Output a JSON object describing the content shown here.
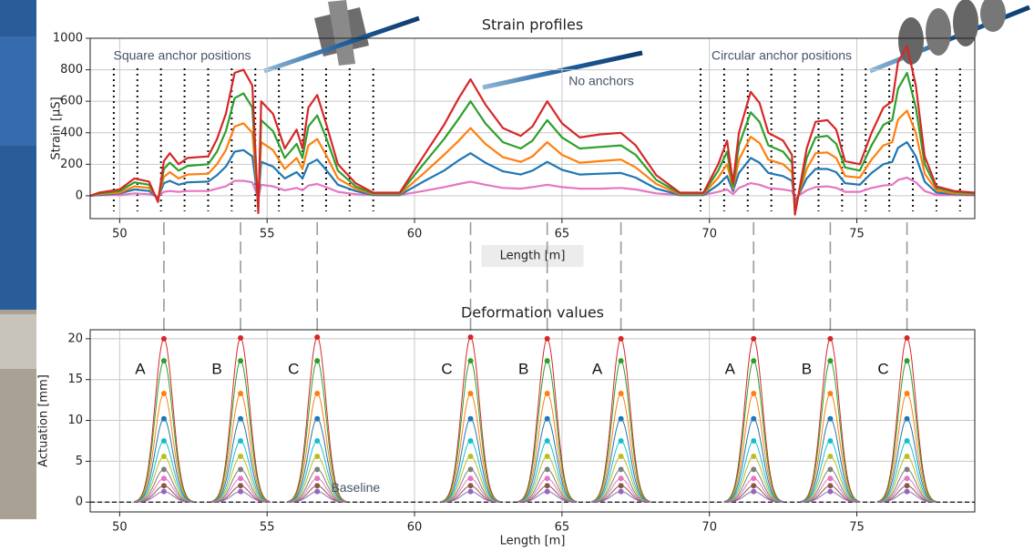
{
  "chart_data": [
    {
      "type": "line",
      "title": "Strain profiles",
      "x_label": "Length [m]",
      "y_label": "Strain [µS]",
      "xlim": [
        49,
        79
      ],
      "xticks": [
        50,
        55,
        60,
        65,
        70,
        75
      ],
      "ylim": [
        -145,
        1000
      ],
      "yticks": [
        0,
        200,
        400,
        600,
        800,
        1000
      ],
      "grid": true,
      "annotations": [
        "Square anchor positions",
        "No anchors",
        "Circular anchor positions"
      ],
      "anchor_positions": [
        49.8,
        50.6,
        51.4,
        52.2,
        53.0,
        53.8,
        54.6,
        55.4,
        56.2,
        57.0,
        57.8,
        58.6,
        69.7,
        70.5,
        71.3,
        72.1,
        72.9,
        73.7,
        74.5,
        75.3,
        76.1,
        76.9,
        77.7,
        78.5
      ],
      "x": [
        49.0,
        49.3,
        50.0,
        50.5,
        51.0,
        51.3,
        51.5,
        51.7,
        52.0,
        52.3,
        53.0,
        53.3,
        53.6,
        53.9,
        54.2,
        54.5,
        54.7,
        54.8,
        55.2,
        55.6,
        56.0,
        56.2,
        56.4,
        56.7,
        57.0,
        57.4,
        58.0,
        58.6,
        59.5,
        60.3,
        61.0,
        61.5,
        61.9,
        62.4,
        63.0,
        63.6,
        64.0,
        64.5,
        65.0,
        65.6,
        66.3,
        67.0,
        67.5,
        68.2,
        69.0,
        69.8,
        70.3,
        70.6,
        70.8,
        71.0,
        71.4,
        71.7,
        72.0,
        72.5,
        72.8,
        72.9,
        73.3,
        73.6,
        74.0,
        74.3,
        74.6,
        75.1,
        75.5,
        75.9,
        76.2,
        76.4,
        76.7,
        77.0,
        77.3,
        77.7,
        78.3,
        79.0
      ],
      "series": [
        {
          "color": "#d62728",
          "values": [
            0,
            20,
            40,
            110,
            90,
            -40,
            220,
            270,
            200,
            240,
            250,
            360,
            520,
            780,
            800,
            700,
            -110,
            600,
            520,
            300,
            420,
            300,
            560,
            640,
            460,
            200,
            80,
            20,
            20,
            250,
            450,
            620,
            740,
            580,
            430,
            380,
            440,
            600,
            460,
            370,
            390,
            400,
            320,
            130,
            20,
            20,
            200,
            350,
            80,
            400,
            660,
            590,
            400,
            350,
            260,
            -120,
            300,
            470,
            480,
            420,
            220,
            200,
            400,
            560,
            600,
            850,
            950,
            700,
            250,
            60,
            30,
            20
          ]
        },
        {
          "color": "#2ca02c",
          "values": [
            0,
            15,
            30,
            85,
            70,
            -30,
            170,
            210,
            160,
            190,
            200,
            280,
            410,
            620,
            650,
            560,
            -80,
            480,
            410,
            240,
            330,
            240,
            440,
            510,
            370,
            160,
            60,
            15,
            15,
            200,
            360,
            490,
            600,
            460,
            340,
            300,
            350,
            480,
            370,
            300,
            310,
            320,
            260,
            100,
            15,
            15,
            160,
            280,
            60,
            320,
            530,
            470,
            320,
            280,
            210,
            -100,
            240,
            370,
            380,
            330,
            180,
            160,
            320,
            450,
            480,
            680,
            780,
            560,
            200,
            50,
            25,
            15
          ]
        },
        {
          "color": "#ff7f0e",
          "values": [
            0,
            10,
            20,
            60,
            50,
            -20,
            120,
            150,
            110,
            135,
            140,
            200,
            290,
            440,
            460,
            400,
            -60,
            340,
            290,
            170,
            240,
            170,
            320,
            360,
            260,
            110,
            45,
            10,
            10,
            140,
            260,
            350,
            430,
            330,
            245,
            215,
            250,
            340,
            260,
            210,
            220,
            230,
            180,
            75,
            10,
            10,
            115,
            200,
            45,
            230,
            375,
            335,
            230,
            200,
            150,
            -70,
            170,
            270,
            275,
            240,
            125,
            115,
            230,
            320,
            340,
            485,
            540,
            400,
            140,
            35,
            15,
            10
          ]
        },
        {
          "color": "#1f77b4",
          "values": [
            0,
            5,
            15,
            40,
            30,
            -15,
            80,
            95,
            70,
            85,
            90,
            130,
            185,
            280,
            290,
            250,
            -40,
            215,
            185,
            110,
            150,
            110,
            200,
            230,
            165,
            70,
            30,
            5,
            5,
            90,
            160,
            225,
            270,
            210,
            155,
            135,
            160,
            215,
            165,
            135,
            140,
            145,
            115,
            45,
            5,
            5,
            70,
            125,
            30,
            145,
            240,
            210,
            145,
            125,
            95,
            -45,
            110,
            170,
            170,
            150,
            80,
            70,
            145,
            200,
            215,
            305,
            340,
            250,
            90,
            20,
            10,
            5
          ]
        },
        {
          "color": "#e377c2",
          "values": [
            0,
            5,
            5,
            15,
            10,
            -5,
            25,
            30,
            25,
            30,
            30,
            45,
            60,
            95,
            95,
            85,
            -15,
            70,
            60,
            35,
            50,
            35,
            65,
            75,
            55,
            25,
            10,
            5,
            5,
            30,
            55,
            75,
            90,
            70,
            50,
            45,
            55,
            70,
            55,
            45,
            45,
            50,
            40,
            15,
            5,
            5,
            25,
            40,
            10,
            50,
            80,
            70,
            50,
            40,
            30,
            -15,
            35,
            55,
            60,
            50,
            25,
            25,
            50,
            65,
            70,
            100,
            115,
            85,
            30,
            5,
            5,
            5
          ]
        }
      ]
    },
    {
      "type": "peaks",
      "title": "Deformation values",
      "x_label": "Length [m]",
      "y_label": "Actuation [mm]",
      "xlim": [
        49,
        79
      ],
      "xticks": [
        50,
        55,
        60,
        65,
        70,
        75
      ],
      "ylim": [
        -1.2,
        21.1
      ],
      "yticks": [
        0,
        5,
        10,
        15,
        20
      ],
      "grid": true,
      "baseline": {
        "value": 0,
        "label": "Baseline"
      },
      "x": [
        51.5,
        54.1,
        56.7,
        61.9,
        64.5,
        67.0,
        71.5,
        74.1,
        76.7
      ],
      "peak_labels": [
        "A",
        "B",
        "C",
        "C",
        "B",
        "A",
        "A",
        "B",
        "C"
      ],
      "series": [
        {
          "color": "#d62728",
          "values": [
            20,
            20.1,
            20.2,
            20.2,
            20,
            20,
            20,
            20,
            20.1
          ]
        },
        {
          "color": "#2ca02c",
          "values": [
            17.3,
            17.3,
            17.3,
            17.3,
            17.3,
            17.3,
            17.3,
            17.3,
            17.3
          ]
        },
        {
          "color": "#ff7f0e",
          "values": [
            13.3,
            13.3,
            13.3,
            13.3,
            13.3,
            13.3,
            13.3,
            13.3,
            13.3
          ]
        },
        {
          "color": "#1f77b4",
          "values": [
            10.2,
            10.2,
            10.2,
            10.2,
            10.2,
            10.2,
            10.2,
            10.2,
            10.2
          ]
        },
        {
          "color": "#17becf",
          "values": [
            7.5,
            7.5,
            7.5,
            7.5,
            7.5,
            7.5,
            7.5,
            7.5,
            7.5
          ]
        },
        {
          "color": "#bcbd22",
          "values": [
            5.6,
            5.6,
            5.6,
            5.6,
            5.6,
            5.6,
            5.6,
            5.6,
            5.6
          ]
        },
        {
          "color": "#7f7f7f",
          "values": [
            4,
            4,
            4,
            4,
            4,
            4,
            4,
            4,
            4
          ]
        },
        {
          "color": "#e377c2",
          "values": [
            2.9,
            2.9,
            2.9,
            2.9,
            2.9,
            2.9,
            2.9,
            2.9,
            2.9
          ]
        },
        {
          "color": "#8c564b",
          "values": [
            2,
            2,
            2,
            2,
            2,
            2,
            2,
            2,
            2
          ]
        },
        {
          "color": "#9467bd",
          "values": [
            1.3,
            1.3,
            1.3,
            1.3,
            1.3,
            1.3,
            1.3,
            1.3,
            1.3
          ]
        }
      ]
    }
  ]
}
